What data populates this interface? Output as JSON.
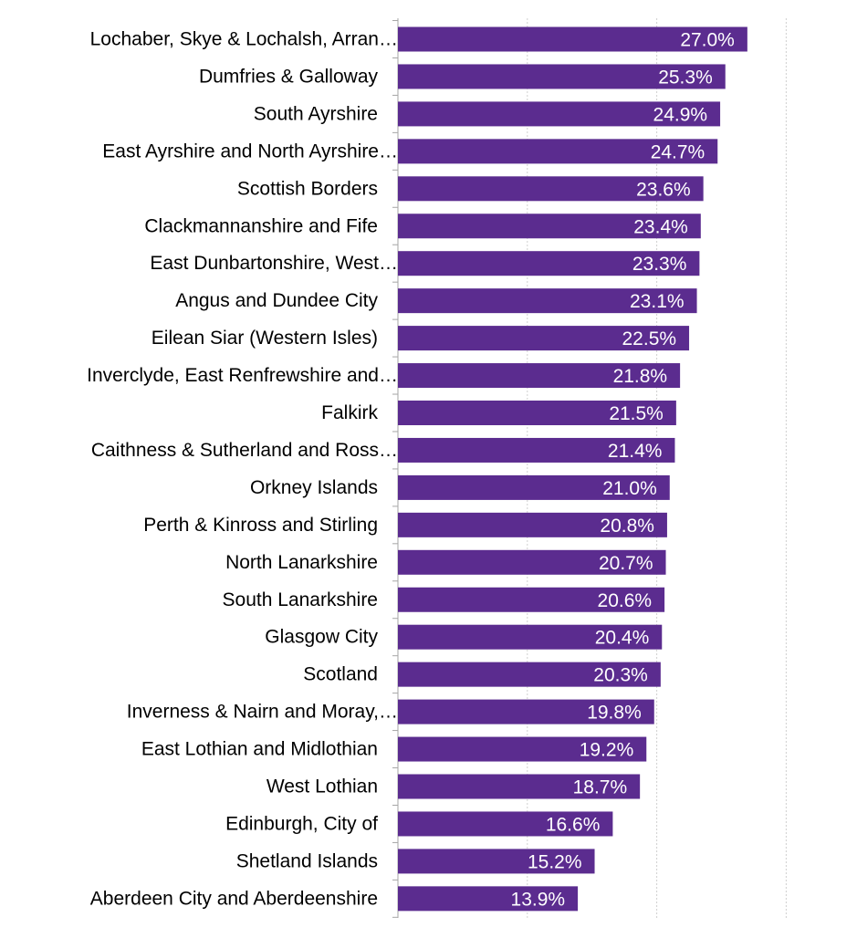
{
  "chart_data": {
    "type": "bar",
    "orientation": "horizontal",
    "title": "",
    "xlabel": "",
    "ylabel": "",
    "xlim": [
      0,
      30
    ],
    "grid": true,
    "legend": "none",
    "bar_color": "#5b2c8f",
    "categories": [
      "Lochaber, Skye & Lochalsh, Arran…",
      "Dumfries & Galloway",
      "South Ayrshire",
      "East Ayrshire and North Ayrshire…",
      "Scottish Borders",
      "Clackmannanshire and Fife",
      "East Dunbartonshire, West…",
      "Angus and Dundee City",
      "Eilean Siar (Western Isles)",
      "Inverclyde, East Renfrewshire and…",
      "Falkirk",
      "Caithness & Sutherland and Ross…",
      "Orkney Islands",
      "Perth & Kinross and Stirling",
      "North Lanarkshire",
      "South Lanarkshire",
      "Glasgow City",
      "Scotland",
      "Inverness & Nairn and Moray,…",
      "East Lothian and Midlothian",
      "West Lothian",
      "Edinburgh, City of",
      "Shetland Islands",
      "Aberdeen City and Aberdeenshire"
    ],
    "values": [
      27.0,
      25.3,
      24.9,
      24.7,
      23.6,
      23.4,
      23.3,
      23.1,
      22.5,
      21.8,
      21.5,
      21.4,
      21.0,
      20.8,
      20.7,
      20.6,
      20.4,
      20.3,
      19.8,
      19.2,
      18.7,
      16.6,
      15.2,
      13.9
    ],
    "value_labels": [
      "27.0%",
      "25.3%",
      "24.9%",
      "24.7%",
      "23.6%",
      "23.4%",
      "23.3%",
      "23.1%",
      "22.5%",
      "21.8%",
      "21.5%",
      "21.4%",
      "21.0%",
      "20.8%",
      "20.7%",
      "20.6%",
      "20.4%",
      "20.3%",
      "19.8%",
      "19.2%",
      "18.7%",
      "16.6%",
      "15.2%",
      "13.9%"
    ]
  }
}
